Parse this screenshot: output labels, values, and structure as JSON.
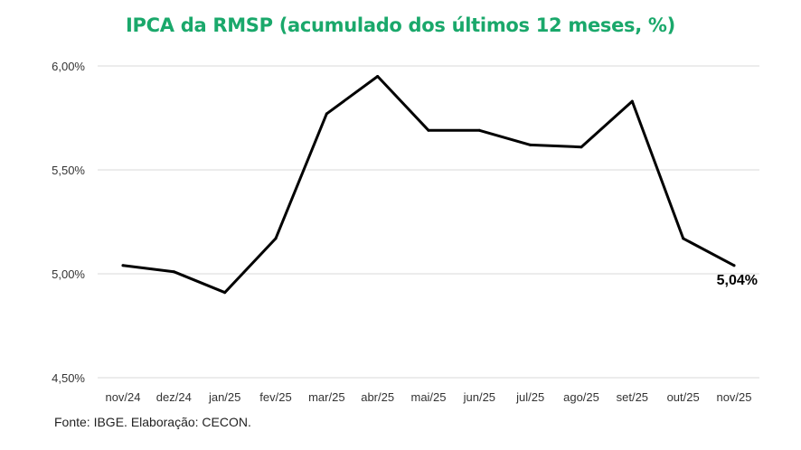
{
  "title": "IPCA da RMSP (acumulado dos últimos 12 meses, %)",
  "source": "Fonte: IBGE. Elaboração: CECON.",
  "chart_data": {
    "type": "line",
    "title": "IPCA da RMSP (acumulado dos últimos 12 meses, %)",
    "xlabel": "",
    "ylabel": "",
    "categories": [
      "nov/24",
      "dez/24",
      "jan/25",
      "fev/25",
      "mar/25",
      "abr/25",
      "mai/25",
      "jun/25",
      "jul/25",
      "ago/25",
      "set/25",
      "out/25",
      "nov/25"
    ],
    "values": [
      5.04,
      5.01,
      4.91,
      5.17,
      5.77,
      5.95,
      5.69,
      5.69,
      5.62,
      5.61,
      5.83,
      5.17,
      5.04
    ],
    "ylim": [
      4.5,
      6.0
    ],
    "yticks": [
      4.5,
      5.0,
      5.5,
      6.0
    ],
    "ytick_labels": [
      "4,50%",
      "5,00%",
      "5,50%",
      "6,00%"
    ],
    "grid": true,
    "line_color": "#000000",
    "grid_color": "#d9d9d9",
    "end_label": "5,04%"
  }
}
